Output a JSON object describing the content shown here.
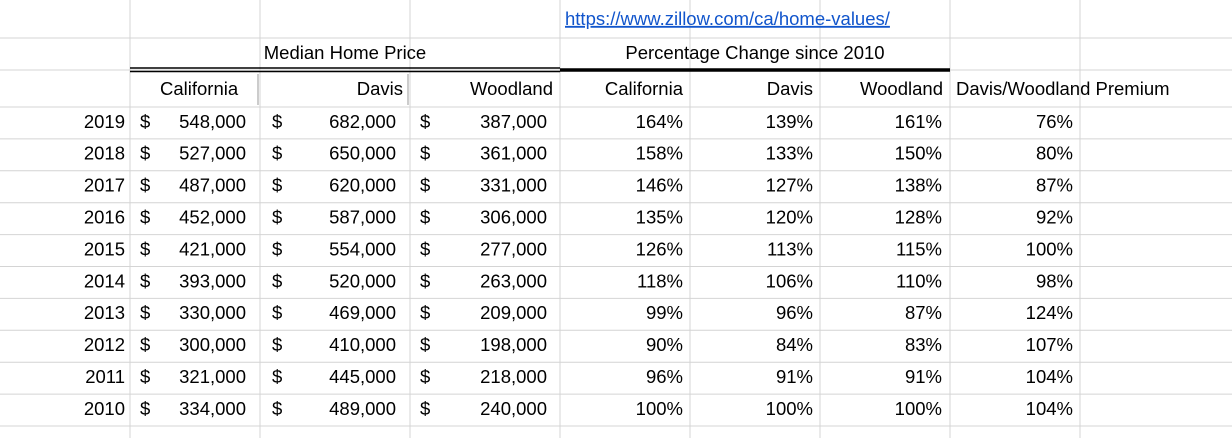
{
  "link": "https://www.zillow.com/ca/home-values/",
  "groups": [
    "Median Home Price",
    "Percentage Change since 2010"
  ],
  "columns": [
    "California",
    "Davis",
    "Woodland",
    "California",
    "Davis",
    "Woodland",
    "Davis/Woodland Premium"
  ],
  "currency_symbol": "$",
  "rows": [
    [
      "2019",
      "548,000",
      "682,000",
      "387,000",
      "164%",
      "139%",
      "161%",
      "76%"
    ],
    [
      "2018",
      "527,000",
      "650,000",
      "361,000",
      "158%",
      "133%",
      "150%",
      "80%"
    ],
    [
      "2017",
      "487,000",
      "620,000",
      "331,000",
      "146%",
      "127%",
      "138%",
      "87%"
    ],
    [
      "2016",
      "452,000",
      "587,000",
      "306,000",
      "135%",
      "120%",
      "128%",
      "92%"
    ],
    [
      "2015",
      "421,000",
      "554,000",
      "277,000",
      "126%",
      "113%",
      "115%",
      "100%"
    ],
    [
      "2014",
      "393,000",
      "520,000",
      "263,000",
      "118%",
      "106%",
      "110%",
      "98%"
    ],
    [
      "2013",
      "330,000",
      "469,000",
      "209,000",
      "99%",
      "96%",
      "87%",
      "124%"
    ],
    [
      "2012",
      "300,000",
      "410,000",
      "198,000",
      "90%",
      "84%",
      "83%",
      "107%"
    ],
    [
      "2011",
      "321,000",
      "445,000",
      "218,000",
      "96%",
      "91%",
      "91%",
      "104%"
    ],
    [
      "2010",
      "334,000",
      "489,000",
      "240,000",
      "100%",
      "100%",
      "100%",
      "104%"
    ]
  ]
}
